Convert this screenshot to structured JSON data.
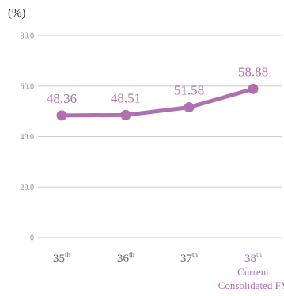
{
  "chart_data": {
    "type": "line",
    "y_unit_label": "(%)",
    "ylim": [
      0,
      80
    ],
    "y_ticks": [
      "0",
      "20.0",
      "40.0",
      "60.0",
      "80.0"
    ],
    "categories": [
      {
        "num": "35",
        "sup": "th",
        "sub": ""
      },
      {
        "num": "36",
        "sup": "th",
        "sub": ""
      },
      {
        "num": "37",
        "sup": "th",
        "sub": ""
      },
      {
        "num": "38",
        "sup": "th",
        "sub": "Current Consolidated FY"
      }
    ],
    "values": [
      48.36,
      48.51,
      51.58,
      58.88
    ],
    "value_labels": [
      "48.36",
      "48.51",
      "51.58",
      "58.88"
    ],
    "highlight_index": 3,
    "grid": true,
    "line_color": "#b070b0",
    "grid_color": "#cccccc"
  }
}
